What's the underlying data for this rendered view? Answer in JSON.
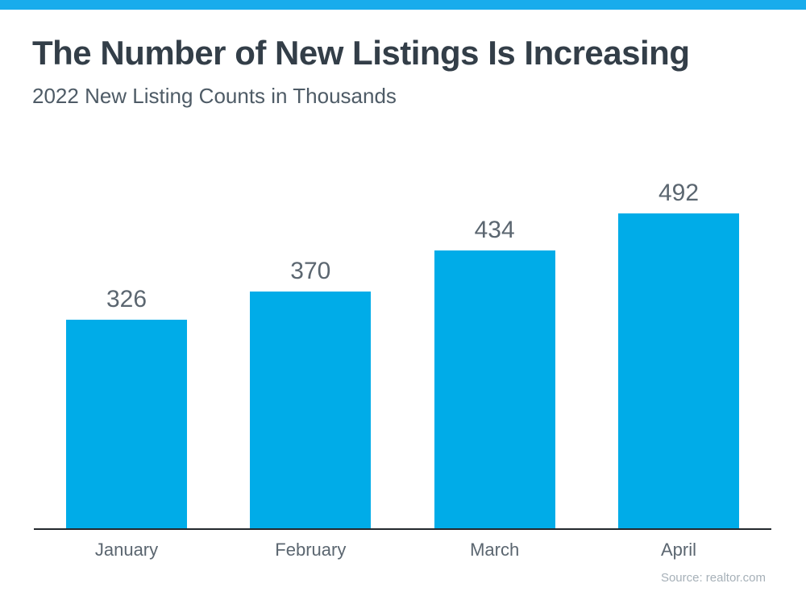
{
  "page": {
    "title": "The Number of New Listings Is Increasing",
    "subtitle": "2022 New Listing Counts in Thousands",
    "source": "Source: realtor.com"
  },
  "colors": {
    "accent_strip": "#18ACEC",
    "bar_fill": "#00ACE8",
    "title_text": "#333E48",
    "subtitle_text": "#4E5B66",
    "label_text": "#5B6670",
    "axis_line": "#23282D",
    "source_text": "#A6B0B8"
  },
  "chart_data": {
    "type": "bar",
    "categories": [
      "January",
      "February",
      "March",
      "April"
    ],
    "values": [
      326,
      370,
      434,
      492
    ],
    "title": "The Number of New Listings Is Increasing",
    "subtitle": "2022 New Listing Counts in Thousands",
    "xlabel": "",
    "ylabel": "",
    "ylim": [
      0,
      492
    ],
    "grid": false,
    "legend": false,
    "data_labels": true,
    "bar_color": "#00ACE8",
    "source": "Source: realtor.com"
  }
}
